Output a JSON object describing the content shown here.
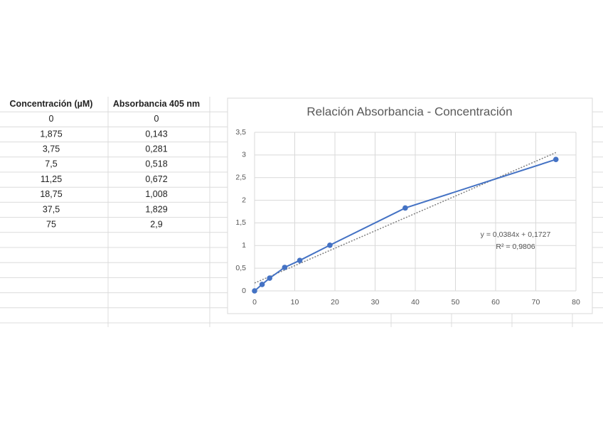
{
  "table": {
    "header": [
      "Concentración (µM)",
      "Absorbancia 405 nm"
    ],
    "rows": [
      [
        "0",
        "0"
      ],
      [
        "1,875",
        "0,143"
      ],
      [
        "3,75",
        "0,281"
      ],
      [
        "7,5",
        "0,518"
      ],
      [
        "11,25",
        "0,672"
      ],
      [
        "18,75",
        "1,008"
      ],
      [
        "37,5",
        "1,829"
      ],
      [
        "75",
        "2,9"
      ]
    ]
  },
  "chart_data": {
    "type": "scatter",
    "title": "Relación Absorbancia - Concentración",
    "x": [
      0,
      1.875,
      3.75,
      7.5,
      11.25,
      18.75,
      37.5,
      75
    ],
    "values": [
      0,
      0.143,
      0.281,
      0.518,
      0.672,
      1.008,
      1.829,
      2.9
    ],
    "color": "#4472c4",
    "line": true,
    "xlim": [
      0,
      80
    ],
    "xticks": [
      0,
      10,
      20,
      30,
      40,
      50,
      60,
      70,
      80
    ],
    "ylim": [
      0,
      3.5
    ],
    "yticks": [
      0,
      {
        "value": 0.5,
        "label": "0,5"
      },
      1,
      {
        "value": 1.5,
        "label": "1,5"
      },
      2,
      {
        "value": 2.5,
        "label": "2,5"
      },
      3,
      {
        "value": 3.5,
        "label": "3,5"
      }
    ],
    "grid": true,
    "trendline": {
      "slope": 0.0384,
      "intercept": 0.1727,
      "r2": 0.9806,
      "color": "#7f7f7f",
      "equation": "y = 0,0384x + 0,1727",
      "r2_label": "R² = 0,9806"
    }
  }
}
